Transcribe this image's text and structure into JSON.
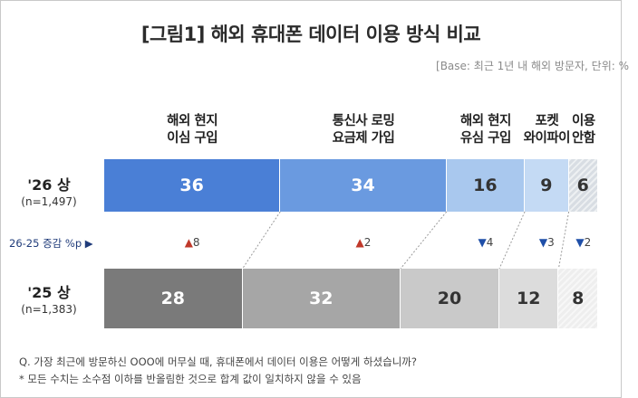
{
  "title": "[그림1] 해외 휴대폰 데이터 이용 방식 비교",
  "base_note": "[Base: 최근 1년 내 해외 방문자, 단위: %",
  "chart_data": {
    "type": "bar",
    "orientation": "horizontal-stacked",
    "categories": [
      {
        "line1": "해외 현지",
        "line2": "이심 구입"
      },
      {
        "line1": "통신사 로밍",
        "line2": "요금제 가입"
      },
      {
        "line1": "해외 현지",
        "line2": "유심 구입"
      },
      {
        "line1": "포켓",
        "line2": "와이파이"
      },
      {
        "line1": "이용",
        "line2": "안함"
      }
    ],
    "series": [
      {
        "name": "'26 상",
        "sample": "(n=1,497)",
        "values": [
          36,
          34,
          16,
          9,
          6
        ]
      },
      {
        "name": "'25 상",
        "sample": "(n=1,383)",
        "values": [
          28,
          32,
          20,
          12,
          8
        ]
      }
    ],
    "change_label": "26-25 증감 %p ▶",
    "changes": [
      {
        "dir": "up",
        "value": "8"
      },
      {
        "dir": "up",
        "value": "2"
      },
      {
        "dir": "down",
        "value": "4"
      },
      {
        "dir": "down",
        "value": "3"
      },
      {
        "dir": "down",
        "value": "2"
      }
    ],
    "colors": {
      "s26": [
        "#4a7fd6",
        "#6a9ae0",
        "#a9c8ee",
        "#c4daf4",
        "#d8dde3"
      ],
      "s25": [
        "#7a7a7a",
        "#a6a6a6",
        "#c9c9c9",
        "#dcdcdc",
        "#eeeeee"
      ],
      "label_dark": "#ffffff",
      "label_light": "#333333",
      "up": "#c0392b",
      "down": "#1f4fa8"
    }
  },
  "notes": [
    "Q. 가장 최근에 방문하신 OOO에 머무실 때, 휴대폰에서 데이터 이용은 어떻게 하셨습니까?",
    "* 모든 수치는 소수점 이하를 반올림한 것으로 합계 값이 일치하지 않을 수 있음"
  ]
}
